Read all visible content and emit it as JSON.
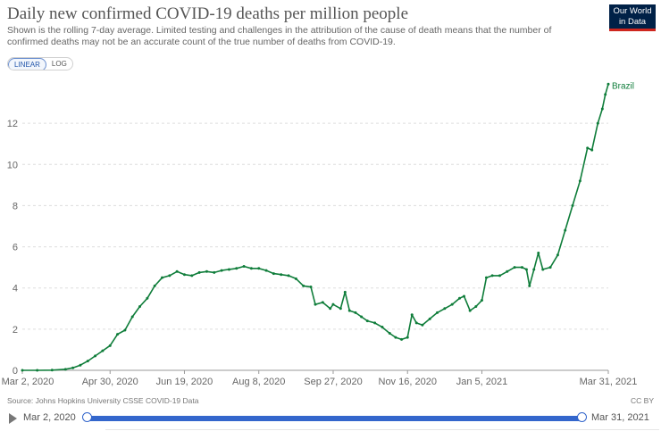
{
  "header": {
    "title": "Daily new confirmed COVID-19 deaths per million people",
    "subtitle": "Shown is the rolling 7-day average. Limited testing and challenges in the attribution of the cause of death means that the number of confirmed deaths may not be an accurate count of the true number of deaths from COVID-19.",
    "logo_line1": "Our World",
    "logo_line2": "in Data"
  },
  "controls": {
    "linear_label": "LINEAR",
    "log_label": "LOG",
    "selected": "LINEAR"
  },
  "footer": {
    "source": "Source: Johns Hopkins University CSSE COVID-19 Data",
    "license": "CC BY"
  },
  "timeline": {
    "start_label": "Mar 2, 2020",
    "end_label": "Mar 31, 2021"
  },
  "colors": {
    "series": "#0f7d3a",
    "grid": "#dddddd",
    "tick_text": "#666666",
    "accent": "#3366cc"
  },
  "chart_data": {
    "type": "line",
    "title": "Daily new confirmed COVID-19 deaths per million people",
    "xlabel": "",
    "ylabel": "",
    "x_range": [
      "2020-03-02",
      "2021-03-31"
    ],
    "ylim": [
      0,
      14
    ],
    "y_ticks": [
      0,
      2,
      4,
      6,
      8,
      10,
      12
    ],
    "x_tick_labels": [
      {
        "date": "2020-03-02",
        "label": "Mar 2, 2020"
      },
      {
        "date": "2020-04-30",
        "label": "Apr 30, 2020"
      },
      {
        "date": "2020-06-19",
        "label": "Jun 19, 2020"
      },
      {
        "date": "2020-08-08",
        "label": "Aug 8, 2020"
      },
      {
        "date": "2020-09-27",
        "label": "Sep 27, 2020"
      },
      {
        "date": "2020-11-16",
        "label": "Nov 16, 2020"
      },
      {
        "date": "2021-01-05",
        "label": "Jan 5, 2021"
      },
      {
        "date": "2021-03-31",
        "label": "Mar 31, 2021"
      }
    ],
    "grid": true,
    "series": [
      {
        "name": "Brazil",
        "points": [
          [
            "2020-03-02",
            0
          ],
          [
            "2020-03-12",
            0
          ],
          [
            "2020-03-22",
            0.01
          ],
          [
            "2020-03-31",
            0.05
          ],
          [
            "2020-04-05",
            0.12
          ],
          [
            "2020-04-10",
            0.25
          ],
          [
            "2020-04-15",
            0.45
          ],
          [
            "2020-04-20",
            0.7
          ],
          [
            "2020-04-25",
            0.95
          ],
          [
            "2020-04-30",
            1.2
          ],
          [
            "2020-05-05",
            1.75
          ],
          [
            "2020-05-10",
            1.95
          ],
          [
            "2020-05-15",
            2.6
          ],
          [
            "2020-05-20",
            3.1
          ],
          [
            "2020-05-25",
            3.5
          ],
          [
            "2020-05-30",
            4.1
          ],
          [
            "2020-06-04",
            4.5
          ],
          [
            "2020-06-09",
            4.6
          ],
          [
            "2020-06-14",
            4.8
          ],
          [
            "2020-06-19",
            4.65
          ],
          [
            "2020-06-24",
            4.6
          ],
          [
            "2020-06-29",
            4.75
          ],
          [
            "2020-07-04",
            4.8
          ],
          [
            "2020-07-09",
            4.75
          ],
          [
            "2020-07-14",
            4.85
          ],
          [
            "2020-07-19",
            4.9
          ],
          [
            "2020-07-24",
            4.95
          ],
          [
            "2020-07-29",
            5.05
          ],
          [
            "2020-08-03",
            4.95
          ],
          [
            "2020-08-08",
            4.95
          ],
          [
            "2020-08-13",
            4.85
          ],
          [
            "2020-08-18",
            4.7
          ],
          [
            "2020-08-23",
            4.65
          ],
          [
            "2020-08-28",
            4.6
          ],
          [
            "2020-09-02",
            4.45
          ],
          [
            "2020-09-07",
            4.1
          ],
          [
            "2020-09-12",
            4.05
          ],
          [
            "2020-09-15",
            3.2
          ],
          [
            "2020-09-20",
            3.3
          ],
          [
            "2020-09-25",
            3.0
          ],
          [
            "2020-09-27",
            3.2
          ],
          [
            "2020-10-02",
            3.0
          ],
          [
            "2020-10-05",
            3.8
          ],
          [
            "2020-10-08",
            2.9
          ],
          [
            "2020-10-12",
            2.8
          ],
          [
            "2020-10-16",
            2.6
          ],
          [
            "2020-10-20",
            2.4
          ],
          [
            "2020-10-25",
            2.3
          ],
          [
            "2020-10-30",
            2.1
          ],
          [
            "2020-11-04",
            1.8
          ],
          [
            "2020-11-08",
            1.6
          ],
          [
            "2020-11-12",
            1.5
          ],
          [
            "2020-11-16",
            1.6
          ],
          [
            "2020-11-19",
            2.7
          ],
          [
            "2020-11-22",
            2.3
          ],
          [
            "2020-11-26",
            2.2
          ],
          [
            "2020-12-01",
            2.5
          ],
          [
            "2020-12-06",
            2.8
          ],
          [
            "2020-12-11",
            3.0
          ],
          [
            "2020-12-16",
            3.2
          ],
          [
            "2020-12-21",
            3.5
          ],
          [
            "2020-12-24",
            3.6
          ],
          [
            "2020-12-28",
            2.9
          ],
          [
            "2021-01-01",
            3.1
          ],
          [
            "2021-01-05",
            3.4
          ],
          [
            "2021-01-08",
            4.5
          ],
          [
            "2021-01-12",
            4.6
          ],
          [
            "2021-01-17",
            4.6
          ],
          [
            "2021-01-22",
            4.8
          ],
          [
            "2021-01-27",
            5.0
          ],
          [
            "2021-02-01",
            5.0
          ],
          [
            "2021-02-04",
            4.9
          ],
          [
            "2021-02-06",
            4.1
          ],
          [
            "2021-02-09",
            4.9
          ],
          [
            "2021-02-12",
            5.7
          ],
          [
            "2021-02-15",
            4.9
          ],
          [
            "2021-02-20",
            5.0
          ],
          [
            "2021-02-25",
            5.6
          ],
          [
            "2021-03-02",
            6.8
          ],
          [
            "2021-03-07",
            8.0
          ],
          [
            "2021-03-12",
            9.2
          ],
          [
            "2021-03-17",
            10.8
          ],
          [
            "2021-03-20",
            10.7
          ],
          [
            "2021-03-24",
            12.0
          ],
          [
            "2021-03-27",
            12.7
          ],
          [
            "2021-03-29",
            13.4
          ],
          [
            "2021-03-31",
            13.9
          ]
        ]
      }
    ]
  }
}
